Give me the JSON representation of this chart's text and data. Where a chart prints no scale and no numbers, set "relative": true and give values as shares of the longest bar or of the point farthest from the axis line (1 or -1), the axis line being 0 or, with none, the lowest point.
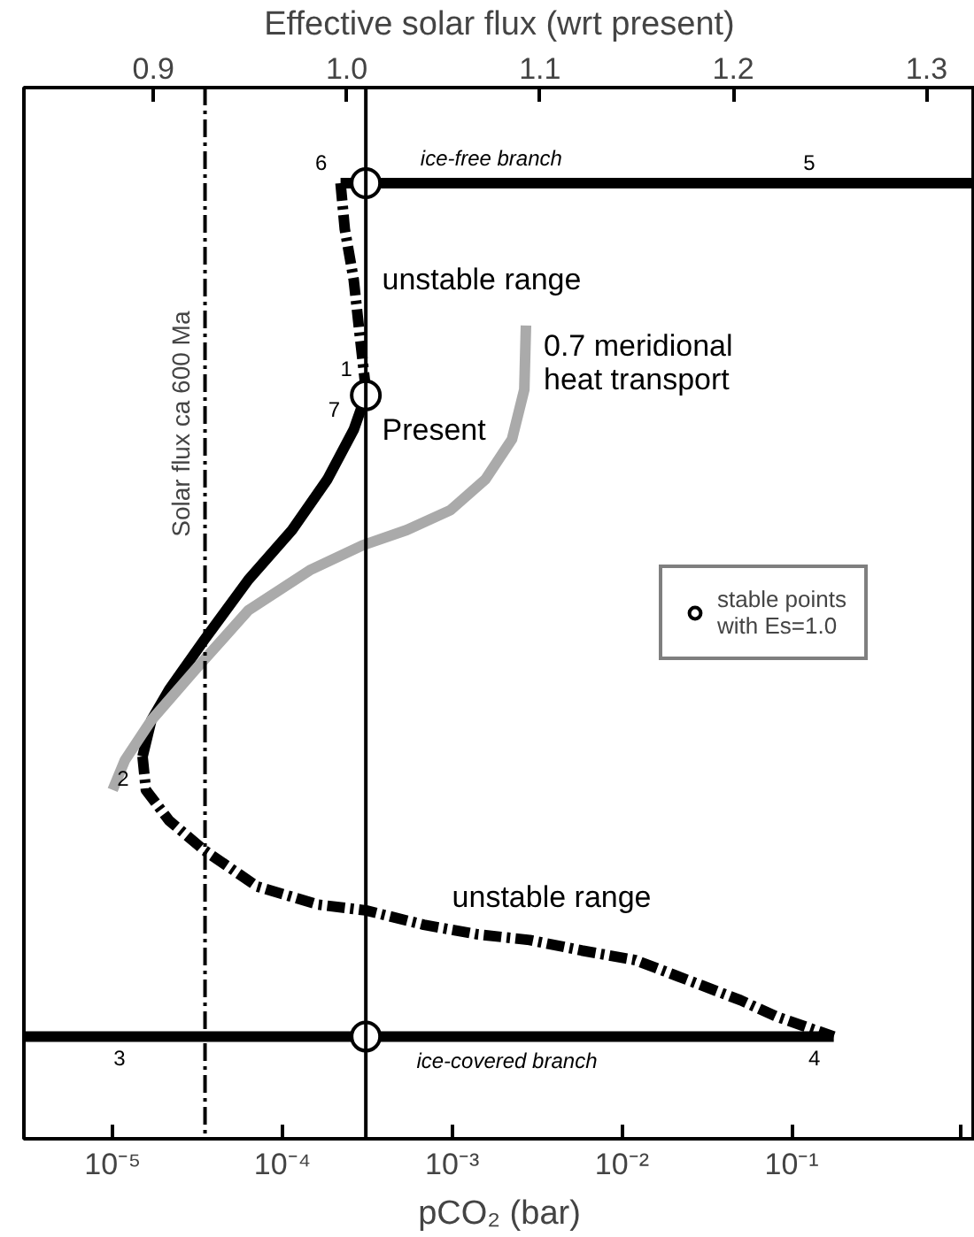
{
  "chart_data": {
    "type": "line",
    "relative": true,
    "x2label": "Effective solar flux (wrt present)",
    "xlabel": "pCO₂ (bar)",
    "log": "x",
    "xlim": [
      3e-06,
      1.2
    ],
    "xticks": [
      {
        "value": 1e-05,
        "label": "10⁻⁵"
      },
      {
        "value": 0.0001,
        "label": "10⁻⁴"
      },
      {
        "value": 0.001,
        "label": "10⁻³"
      },
      {
        "value": 0.01,
        "label": "10⁻²"
      },
      {
        "value": 0.1,
        "label": "10⁻¹"
      },
      {
        "value": 1,
        "label": null
      }
    ],
    "x2lim": [
      0.833,
      1.325
    ],
    "x2ticks": [
      0.9,
      {
        "value": 1,
        "label": "1.0"
      },
      1.1,
      1.2,
      1.3
    ],
    "grid": false,
    "legend": "right",
    "series": [
      {
        "color": "#000000",
        "x": [
          0.00022,
          1.2
        ],
        "values": [
          1.0,
          1.0
        ]
      },
      {
        "color": "#000000",
        "x": [
          3e-06,
          0.177
        ],
        "values": [
          0.107,
          0.107
        ]
      },
      {
        "color": "#000000",
        "line_style": "dashed",
        "x": [
          0.00022,
          0.000233,
          0.000263,
          0.000283,
          0.00031
        ],
        "values": [
          1.0,
          0.952,
          0.899,
          0.847,
          0.784
        ]
      },
      {
        "color": "#000000",
        "x": [
          0.00031,
          0.000263,
          0.000184,
          0.000114,
          6.3e-05,
          3.46e-05,
          2.15e-05,
          1.69e-05,
          1.5e-05
        ],
        "values": [
          0.778,
          0.742,
          0.69,
          0.637,
          0.585,
          0.522,
          0.47,
          0.438,
          0.4
        ]
      },
      {
        "color": "#000000",
        "line_style": "dashed",
        "x": [
          1.5e-05,
          1.57e-05,
          2.15e-05,
          3.46e-05,
          7.1e-05,
          0.000163,
          0.00031,
          0.00068,
          0.0014,
          0.00286,
          0.0058,
          0.012,
          0.0245,
          0.05,
          0.081,
          0.177
        ],
        "values": [
          0.4,
          0.365,
          0.333,
          0.302,
          0.264,
          0.245,
          0.239,
          0.224,
          0.214,
          0.208,
          0.197,
          0.187,
          0.166,
          0.145,
          0.128,
          0.107
        ]
      },
      {
        "name": "0.7 meridional\nheat transport",
        "color": "#aaaaaa",
        "x": [
          0.00272,
          0.00266,
          0.00225,
          0.00157,
          0.00098,
          0.00054,
          0.000296,
          0.000145,
          6.3e-05,
          3.07e-05,
          1.69e-05,
          1.18e-05,
          1e-05
        ],
        "values": [
          0.851,
          0.784,
          0.732,
          0.69,
          0.658,
          0.637,
          0.621,
          0.595,
          0.553,
          0.491,
          0.438,
          0.396,
          0.365
        ]
      },
      {
        "name": "stable points\nwith Es=1.0",
        "type": "scatter",
        "marker": "circle",
        "color": "#ffffff",
        "x": [
          0.00031,
          0.00031,
          0.00031
        ],
        "values": [
          1.0,
          0.778,
          0.107
        ]
      }
    ],
    "ref_lines": [
      {
        "axis": "x",
        "value": 3.5e-05,
        "label": "Solar flux ca 600 Ma",
        "line_style": "dashed"
      },
      {
        "axis": "x",
        "value": 0.00031,
        "label": null,
        "line_style": "solid"
      }
    ],
    "annotations": [
      {
        "text": "ice-free branch",
        "x": 0.0017,
        "y": 1.0
      },
      {
        "text": "ice-covered branch",
        "x": 0.0021,
        "y": 0.107
      },
      {
        "text": "6",
        "x": 0.00022,
        "y": 1.0
      },
      {
        "text": "5",
        "x": 0.165,
        "y": 1.0
      },
      {
        "text": "1",
        "x": 0.00031,
        "y": 0.784
      },
      {
        "text": "7",
        "x": 0.000263,
        "y": 0.742
      },
      {
        "text": "2",
        "x": 1.5e-05,
        "y": 0.4
      },
      {
        "text": "3",
        "x": 1.43e-05,
        "y": 0.107
      },
      {
        "text": "4",
        "x": 0.177,
        "y": 0.107
      },
      {
        "text": "unstable range",
        "x": 0.000263,
        "y": 0.899
      },
      {
        "text": "unstable range",
        "x": 0.00068,
        "y": 0.224
      },
      {
        "text": "Present",
        "x": 0.000263,
        "y": 0.742
      }
    ]
  }
}
